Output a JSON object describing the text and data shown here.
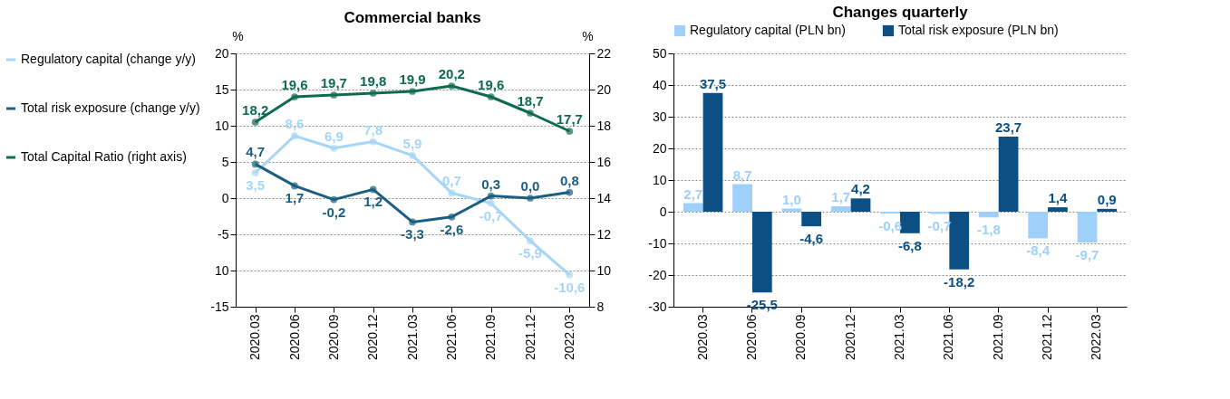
{
  "chart_data": [
    {
      "type": "line",
      "title": "Commercial banks",
      "ylabel": "%",
      "y2label": "%",
      "categories": [
        "2020.03",
        "2020.06",
        "2020.09",
        "2020.12",
        "2021.03",
        "2021.06",
        "2021.09",
        "2021.12",
        "2022.03"
      ],
      "series": [
        {
          "name": "Regulatory capital (change y/y)",
          "color": "#a6d5f7",
          "values": [
            3.5,
            8.6,
            6.9,
            7.8,
            5.9,
            0.7,
            -0.7,
            -5.9,
            -10.6
          ],
          "value_labels": [
            "3,5",
            "8,6",
            "6,9",
            "7,8",
            "5,9",
            "0,7",
            "-0,7",
            "-5,9",
            "-10,6"
          ]
        },
        {
          "name": "Total risk exposure (change y/y)",
          "color": "#1b5e82",
          "values": [
            4.7,
            1.7,
            -0.2,
            1.2,
            -3.3,
            -2.6,
            0.3,
            0.0,
            0.8
          ],
          "value_labels": [
            "4,7",
            "1,7",
            "-0,2",
            "1,2",
            "-3,3",
            "-2,6",
            "0,3",
            "0,0",
            "0,8"
          ]
        },
        {
          "name": "Total Capital Ratio (right axis)",
          "color": "#0e6b52",
          "axis": "y2",
          "values": [
            18.2,
            19.6,
            19.7,
            19.8,
            19.9,
            20.2,
            19.6,
            18.7,
            17.7
          ],
          "value_labels": [
            "18,2",
            "19,6",
            "19,7",
            "19,8",
            "19,9",
            "20,2",
            "19,6",
            "18,7",
            "17,7"
          ]
        }
      ],
      "ylim": [
        -15,
        20
      ],
      "yticks": [
        -15,
        {
          "value": -10,
          "label": "10"
        },
        -5,
        0,
        5,
        10,
        15,
        20
      ],
      "y2lim": [
        8,
        22
      ],
      "y2ticks": [
        8,
        10,
        12,
        14,
        16,
        18,
        20,
        22
      ],
      "grid": "y",
      "legend": "left",
      "marker": "circle"
    },
    {
      "type": "bar",
      "title": "Changes quarterly",
      "categories": [
        "2020.03",
        "2020.06",
        "2020.09",
        "2020.12",
        "2021.03",
        "2021.06",
        "2021.09",
        "2021.12",
        "2022.03"
      ],
      "series": [
        {
          "name": "Regulatory capital (PLN bn)",
          "color": "#9fcffb",
          "values": [
            2.7,
            8.7,
            1.0,
            1.7,
            -0.6,
            -0.7,
            -1.8,
            -8.4,
            -9.7
          ],
          "value_labels": [
            "2,7",
            "8,7",
            "1,0",
            "1,7",
            "-0,6",
            "-0,7",
            "-1,8",
            "-8,4",
            "-9,7"
          ]
        },
        {
          "name": "Total risk exposure (PLN bn)",
          "color": "#0b4f85",
          "values": [
            37.5,
            -25.5,
            -4.6,
            4.2,
            -6.8,
            -18.2,
            23.7,
            1.4,
            0.9
          ],
          "value_labels": [
            "37,5",
            "-25,5",
            "-4,6",
            "4,2",
            "-6,8",
            "-18,2",
            "23,7",
            "1,4",
            "0,9"
          ]
        }
      ],
      "ylim": [
        -30,
        50
      ],
      "yticks": [
        -30,
        -20,
        -10,
        0,
        10,
        20,
        30,
        40,
        50
      ],
      "grid": "y",
      "legend": "top"
    }
  ]
}
